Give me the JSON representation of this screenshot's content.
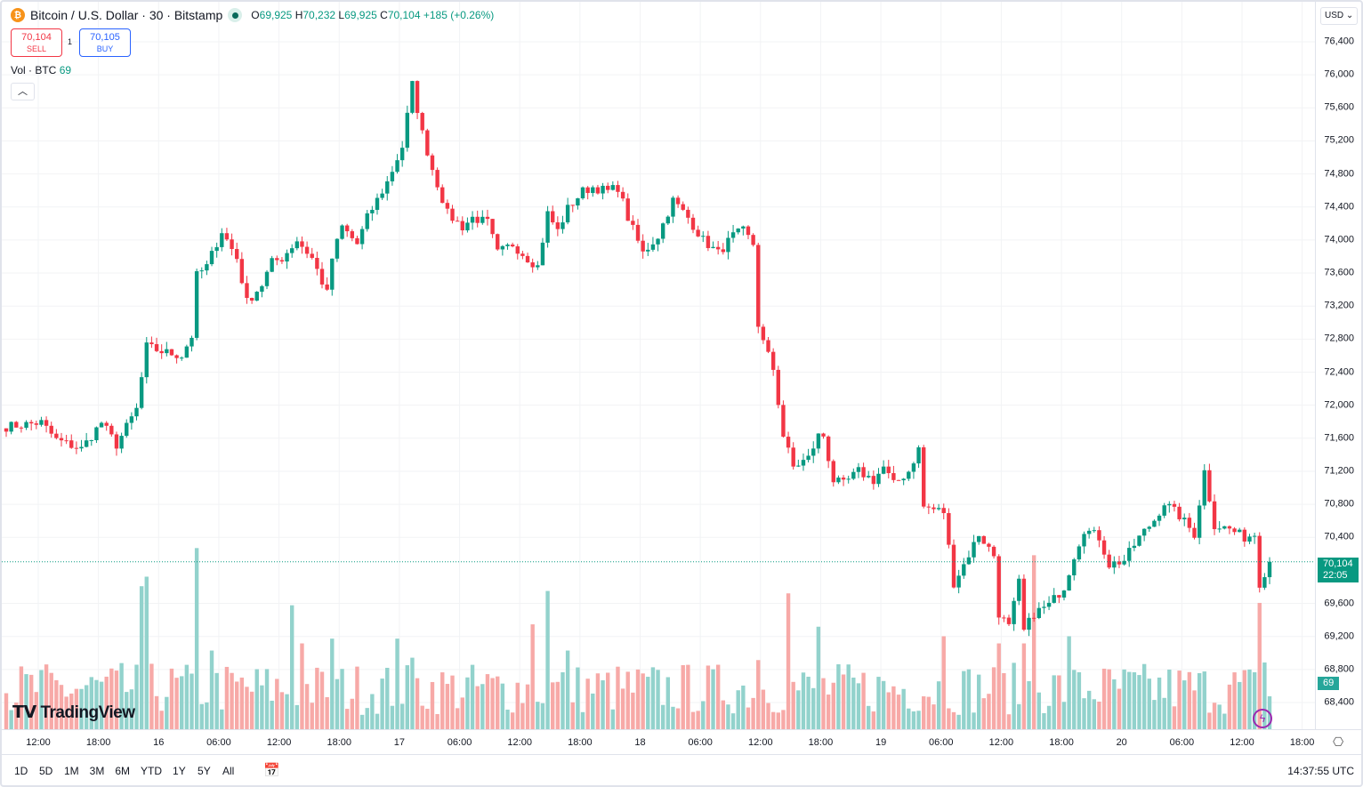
{
  "header": {
    "symbol": "Bitcoin / U.S. Dollar · 30 · Bitstamp",
    "coin_icon": "bitcoin-icon",
    "open_label": "O",
    "open": "69,925",
    "high_label": "H",
    "high": "70,232",
    "low_label": "L",
    "low": "69,925",
    "close_label": "C",
    "close": "70,104",
    "change": "+185 (+0.26%)"
  },
  "trade": {
    "sell_price": "70,104",
    "sell_label": "SELL",
    "spread": "1",
    "buy_price": "70,105",
    "buy_label": "BUY"
  },
  "volume_legend": {
    "label": "Vol · BTC",
    "value": "69"
  },
  "currency": "USD",
  "price_axis": {
    "labels": [
      "76,400",
      "76,000",
      "75,600",
      "75,200",
      "74,800",
      "74,400",
      "74,000",
      "73,600",
      "73,200",
      "72,800",
      "72,400",
      "72,000",
      "71,600",
      "71,200",
      "70,800",
      "70,400",
      "69,600",
      "69,200",
      "68,800",
      "68,400"
    ],
    "current_price": "70,104",
    "countdown": "22:05",
    "volume_tag": "69"
  },
  "time_axis": [
    "12:00",
    "18:00",
    "16",
    "06:00",
    "12:00",
    "18:00",
    "17",
    "06:00",
    "12:00",
    "18:00",
    "18",
    "06:00",
    "12:00",
    "18:00",
    "19",
    "06:00",
    "12:00",
    "18:00",
    "20",
    "06:00",
    "12:00",
    "18:00"
  ],
  "ranges": [
    "1D",
    "5D",
    "1M",
    "3M",
    "6M",
    "YTD",
    "1Y",
    "5Y",
    "All"
  ],
  "clock": "14:37:55 UTC",
  "logo": "TradingView",
  "colors": {
    "up": "#089981",
    "down": "#f23645",
    "vol_up": "#92d2cc",
    "vol_down": "#f7a9a7"
  },
  "chart_data": {
    "type": "candlestick",
    "interval": "30m",
    "ylim": [
      68200,
      76500
    ],
    "key_closes": [
      [
        "15 08:30",
        71740
      ],
      [
        "15 12:00",
        71790
      ],
      [
        "15 13:30",
        71580
      ],
      [
        "15 16:00",
        71470
      ],
      [
        "15 18:00",
        71790
      ],
      [
        "15 19:30",
        71520
      ],
      [
        "15 21:30",
        71950
      ],
      [
        "15 22:30",
        72710
      ],
      [
        "16 00:00",
        72650
      ],
      [
        "16 02:00",
        72600
      ],
      [
        "16 03:00",
        72840
      ],
      [
        "16 03:30",
        73570
      ],
      [
        "16 04:30",
        73680
      ],
      [
        "16 06:00",
        74110
      ],
      [
        "16 07:30",
        73780
      ],
      [
        "16 08:30",
        73250
      ],
      [
        "16 10:00",
        73460
      ],
      [
        "16 11:00",
        73730
      ],
      [
        "16 12:00",
        73780
      ],
      [
        "16 13:30",
        74000
      ],
      [
        "16 15:00",
        73780
      ],
      [
        "16 16:30",
        73350
      ],
      [
        "16 17:00",
        73780
      ],
      [
        "16 18:00",
        74160
      ],
      [
        "16 19:30",
        73950
      ],
      [
        "16 20:30",
        74270
      ],
      [
        "16 22:30",
        74700
      ],
      [
        "17 00:00",
        75130
      ],
      [
        "17 01:00",
        75880
      ],
      [
        "17 02:00",
        75290
      ],
      [
        "17 03:00",
        74860
      ],
      [
        "17 04:30",
        74320
      ],
      [
        "17 06:00",
        74160
      ],
      [
        "17 07:00",
        74270
      ],
      [
        "17 08:30",
        74210
      ],
      [
        "17 09:30",
        73840
      ],
      [
        "17 11:00",
        73950
      ],
      [
        "17 12:30",
        73780
      ],
      [
        "17 13:30",
        73680
      ],
      [
        "17 14:30",
        74320
      ],
      [
        "17 15:30",
        74110
      ],
      [
        "17 16:30",
        74380
      ],
      [
        "17 18:00",
        74590
      ],
      [
        "17 19:00",
        74640
      ],
      [
        "17 20:30",
        74590
      ],
      [
        "17 21:30",
        74640
      ],
      [
        "17 22:30",
        74270
      ],
      [
        "18 00:00",
        73840
      ],
      [
        "18 01:30",
        74050
      ],
      [
        "18 03:00",
        74480
      ],
      [
        "18 04:30",
        74270
      ],
      [
        "18 06:00",
        74000
      ],
      [
        "18 07:30",
        73840
      ],
      [
        "18 09:00",
        74050
      ],
      [
        "18 10:00",
        74110
      ],
      [
        "18 11:00",
        73950
      ],
      [
        "18 11:30",
        72980
      ],
      [
        "18 12:00",
        72760
      ],
      [
        "18 13:00",
        72440
      ],
      [
        "18 14:00",
        71630
      ],
      [
        "18 15:00",
        71250
      ],
      [
        "18 16:30",
        71360
      ],
      [
        "18 17:30",
        71630
      ],
      [
        "18 18:00",
        71630
      ],
      [
        "18 19:00",
        71090
      ],
      [
        "18 20:00",
        71040
      ],
      [
        "18 21:30",
        71200
      ],
      [
        "18 23:00",
        71090
      ],
      [
        "19 00:00",
        71250
      ],
      [
        "19 01:00",
        71040
      ],
      [
        "19 02:30",
        71200
      ],
      [
        "19 03:30",
        71470
      ],
      [
        "19 04:00",
        70770
      ],
      [
        "19 06:00",
        70710
      ],
      [
        "19 07:00",
        69850
      ],
      [
        "19 08:00",
        70070
      ],
      [
        "19 09:30",
        70440
      ],
      [
        "19 11:00",
        70180
      ],
      [
        "19 11:30",
        69480
      ],
      [
        "19 12:30",
        69310
      ],
      [
        "19 13:30",
        69850
      ],
      [
        "19 14:00",
        69260
      ],
      [
        "19 15:00",
        69480
      ],
      [
        "19 16:30",
        69580
      ],
      [
        "19 18:00",
        69800
      ],
      [
        "19 19:00",
        70180
      ],
      [
        "19 20:00",
        70500
      ],
      [
        "19 21:30",
        70400
      ],
      [
        "19 22:30",
        70070
      ],
      [
        "20 00:00",
        70120
      ],
      [
        "20 01:30",
        70400
      ],
      [
        "20 03:00",
        70610
      ],
      [
        "20 04:00",
        70820
      ],
      [
        "20 05:30",
        70660
      ],
      [
        "20 07:00",
        70440
      ],
      [
        "20 08:00",
        71200
      ],
      [
        "20 09:00",
        70550
      ],
      [
        "20 10:30",
        70500
      ],
      [
        "20 12:00",
        70400
      ],
      [
        "20 13:00",
        70440
      ],
      [
        "20 13:30",
        69850
      ],
      [
        "20 14:30",
        70104
      ]
    ],
    "volume_spikes": [
      [
        "15 22:00",
        300
      ],
      [
        "15 22:30",
        320
      ],
      [
        "16 03:30",
        380
      ],
      [
        "16 05:00",
        165
      ],
      [
        "16 13:00",
        260
      ],
      [
        "16 14:00",
        180
      ],
      [
        "16 17:00",
        190
      ],
      [
        "16 23:30",
        190
      ],
      [
        "17 01:00",
        150
      ],
      [
        "17 13:00",
        220
      ],
      [
        "17 14:30",
        290
      ],
      [
        "17 16:30",
        165
      ],
      [
        "18 11:30",
        145
      ],
      [
        "18 14:30",
        285
      ],
      [
        "18 17:30",
        215
      ],
      [
        "19 06:00",
        195
      ],
      [
        "19 11:30",
        180
      ],
      [
        "19 14:00",
        180
      ],
      [
        "19 15:00",
        365
      ],
      [
        "19 18:30",
        195
      ],
      [
        "20 13:30",
        265
      ],
      [
        "20 14:00",
        140
      ],
      [
        "20 14:30",
        69
      ]
    ]
  }
}
